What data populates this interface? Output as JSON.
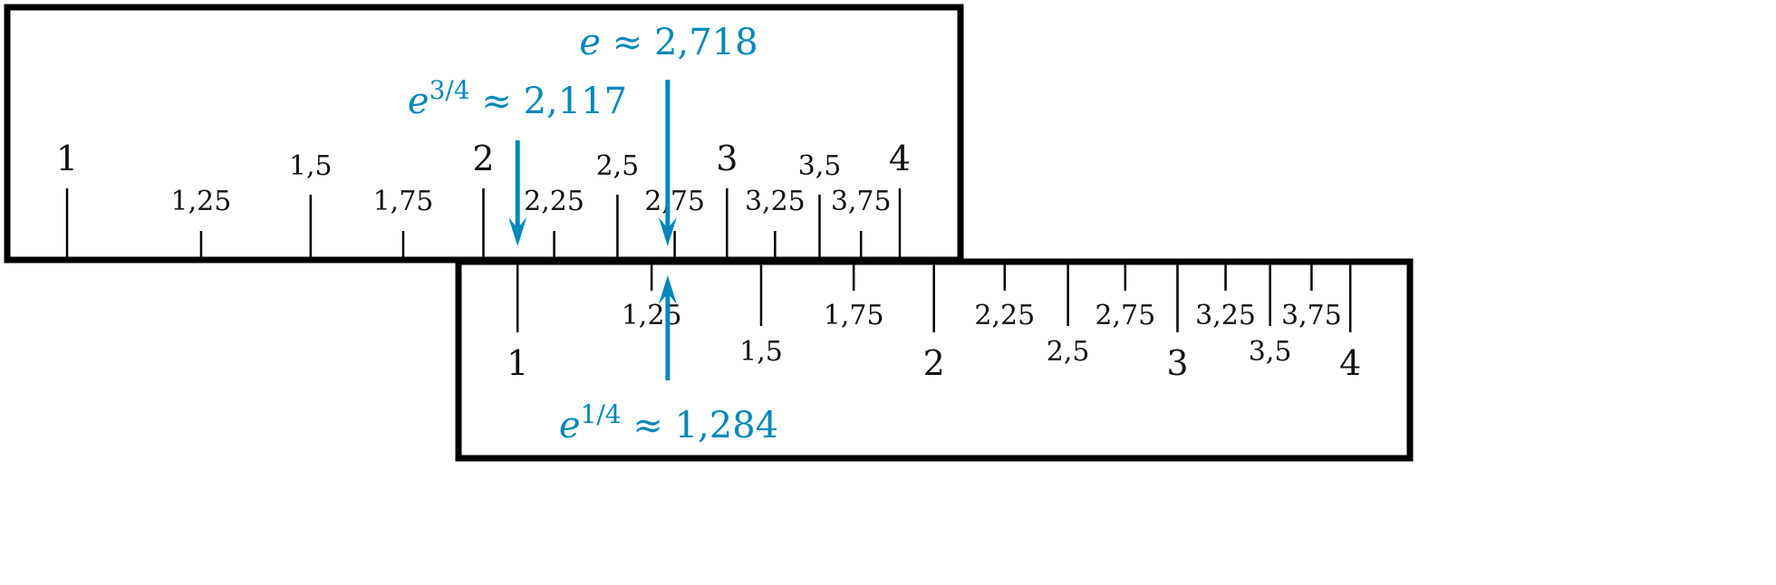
{
  "accent_color": "#0088bb",
  "scale_type": "logarithmic",
  "top_rule": {
    "ticks": [
      {
        "value": 1,
        "label": "1",
        "kind": "major"
      },
      {
        "value": 1.25,
        "label": "1,25",
        "kind": "quarter"
      },
      {
        "value": 1.5,
        "label": "1,5",
        "kind": "half"
      },
      {
        "value": 1.75,
        "label": "1,75",
        "kind": "quarter"
      },
      {
        "value": 2,
        "label": "2",
        "kind": "major"
      },
      {
        "value": 2.25,
        "label": "2,25",
        "kind": "quarter"
      },
      {
        "value": 2.5,
        "label": "2,5",
        "kind": "half"
      },
      {
        "value": 2.75,
        "label": "2,75",
        "kind": "quarter"
      },
      {
        "value": 3,
        "label": "3",
        "kind": "major"
      },
      {
        "value": 3.25,
        "label": "3,25",
        "kind": "quarter"
      },
      {
        "value": 3.5,
        "label": "3,5",
        "kind": "half"
      },
      {
        "value": 3.75,
        "label": "3,75",
        "kind": "quarter"
      },
      {
        "value": 4,
        "label": "4",
        "kind": "major"
      }
    ]
  },
  "bottom_rule": {
    "offset_value": 2.117,
    "ticks": [
      {
        "value": 1,
        "label": "1",
        "kind": "major"
      },
      {
        "value": 1.25,
        "label": "1,25",
        "kind": "quarter"
      },
      {
        "value": 1.5,
        "label": "1,5",
        "kind": "half"
      },
      {
        "value": 1.75,
        "label": "1,75",
        "kind": "quarter"
      },
      {
        "value": 2,
        "label": "2",
        "kind": "major"
      },
      {
        "value": 2.25,
        "label": "2,25",
        "kind": "quarter"
      },
      {
        "value": 2.5,
        "label": "2,5",
        "kind": "half"
      },
      {
        "value": 2.75,
        "label": "2,75",
        "kind": "quarter"
      },
      {
        "value": 3,
        "label": "3",
        "kind": "major"
      },
      {
        "value": 3.25,
        "label": "3,25",
        "kind": "quarter"
      },
      {
        "value": 3.5,
        "label": "3,5",
        "kind": "half"
      },
      {
        "value": 3.75,
        "label": "3,75",
        "kind": "quarter"
      },
      {
        "value": 4,
        "label": "4",
        "kind": "major"
      }
    ]
  },
  "annotations": {
    "e": {
      "base": "e",
      "exponent": "",
      "rest": " ≈ 2,718",
      "value": 2.718,
      "rule": "top"
    },
    "e34": {
      "base": "e",
      "exponent": "3/4",
      "rest": " ≈ 2,117",
      "value": 2.117,
      "rule": "top"
    },
    "e14": {
      "base": "e",
      "exponent": "1/4",
      "rest": " ≈ 1,284",
      "value": 1.284,
      "rule": "bottom"
    }
  }
}
